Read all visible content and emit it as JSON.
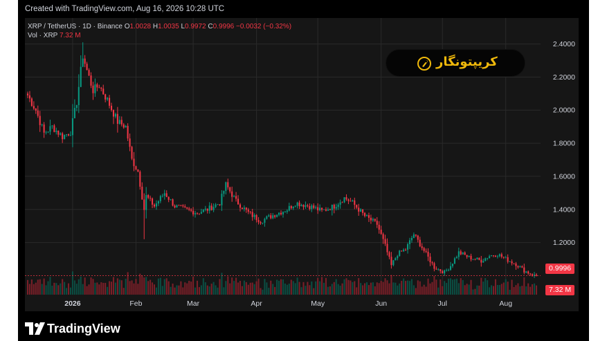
{
  "header": {
    "credit": "Created with TradingView.com, Aug 16, 2026 10:28 UTC"
  },
  "legend": {
    "symbol_line": "XRP / TetherUS · 1D · Binance",
    "open_label": "O",
    "open": "1.0028",
    "high_label": "H",
    "high": "1.0035",
    "low_label": "L",
    "low": "0.9972",
    "close_label": "C",
    "close": "0.9996",
    "change": "−0.0032 (−0.32%)",
    "vol_label": "Vol · XRP",
    "vol": "7.32 M"
  },
  "brand_watermark": {
    "text": "کریپتونگار",
    "icon": "rocket-coin-icon"
  },
  "tags": {
    "last_price": "0.9996",
    "volume": "7.32 M"
  },
  "footer": {
    "brand": "TradingView",
    "icon": "tradingview-logo-icon"
  },
  "colors": {
    "up": "#089981",
    "down": "#f23645",
    "grid": "#2a2a2a",
    "text": "#d1d4dc",
    "brand_gold": "#f0b90b"
  },
  "chart_data": {
    "type": "candlestick",
    "title": "XRP / TetherUS · 1D · Binance",
    "x_tick_labels": [
      "2026",
      "Feb",
      "Mar",
      "Apr",
      "May",
      "Jun",
      "Jul",
      "Aug"
    ],
    "y_tick_labels": [
      "2.4000",
      "2.2000",
      "2.0000",
      "1.8000",
      "1.6000",
      "1.4000",
      "1.2000"
    ],
    "ylim": [
      0.96,
      2.44
    ],
    "grid": true,
    "last_price": 0.9996,
    "x_start": "2025-12-10",
    "close_anchors": [
      [
        "2025-12-10",
        2.09
      ],
      [
        "2025-12-14",
        2.0
      ],
      [
        "2025-12-18",
        1.86
      ],
      [
        "2025-12-22",
        1.9
      ],
      [
        "2025-12-27",
        1.84
      ],
      [
        "2025-12-31",
        1.87
      ],
      [
        "2026-01-03",
        2.05
      ],
      [
        "2026-01-06",
        2.33
      ],
      [
        "2026-01-08",
        2.24
      ],
      [
        "2026-01-11",
        2.12
      ],
      [
        "2026-01-14",
        2.15
      ],
      [
        "2026-01-18",
        2.06
      ],
      [
        "2026-01-23",
        1.93
      ],
      [
        "2026-01-27",
        1.9
      ],
      [
        "2026-01-30",
        1.7
      ],
      [
        "2026-02-02",
        1.63
      ],
      [
        "2026-02-05",
        1.4
      ],
      [
        "2026-02-06",
        1.48
      ],
      [
        "2026-02-10",
        1.42
      ],
      [
        "2026-02-15",
        1.5
      ],
      [
        "2026-02-20",
        1.42
      ],
      [
        "2026-02-25",
        1.4
      ],
      [
        "2026-03-03",
        1.38
      ],
      [
        "2026-03-08",
        1.4
      ],
      [
        "2026-03-14",
        1.44
      ],
      [
        "2026-03-17",
        1.55
      ],
      [
        "2026-03-22",
        1.45
      ],
      [
        "2026-03-28",
        1.38
      ],
      [
        "2026-04-03",
        1.33
      ],
      [
        "2026-04-10",
        1.37
      ],
      [
        "2026-04-16",
        1.4
      ],
      [
        "2026-04-20",
        1.44
      ],
      [
        "2026-04-27",
        1.42
      ],
      [
        "2026-05-03",
        1.39
      ],
      [
        "2026-05-09",
        1.42
      ],
      [
        "2026-05-14",
        1.47
      ],
      [
        "2026-05-18",
        1.44
      ],
      [
        "2026-05-24",
        1.36
      ],
      [
        "2026-05-30",
        1.31
      ],
      [
        "2026-06-03",
        1.18
      ],
      [
        "2026-06-06",
        1.06
      ],
      [
        "2026-06-09",
        1.13
      ],
      [
        "2026-06-13",
        1.16
      ],
      [
        "2026-06-17",
        1.25
      ],
      [
        "2026-06-22",
        1.15
      ],
      [
        "2026-06-27",
        1.05
      ],
      [
        "2026-07-02",
        1.02
      ],
      [
        "2026-07-05",
        1.06
      ],
      [
        "2026-07-09",
        1.14
      ],
      [
        "2026-07-14",
        1.11
      ],
      [
        "2026-07-20",
        1.09
      ],
      [
        "2026-07-24",
        1.12
      ],
      [
        "2026-07-28",
        1.13
      ],
      [
        "2026-08-01",
        1.1
      ],
      [
        "2026-08-06",
        1.07
      ],
      [
        "2026-08-10",
        1.03
      ],
      [
        "2026-08-15",
        1.0
      ]
    ],
    "volume_last": 7.32,
    "volume_unit": "M"
  }
}
